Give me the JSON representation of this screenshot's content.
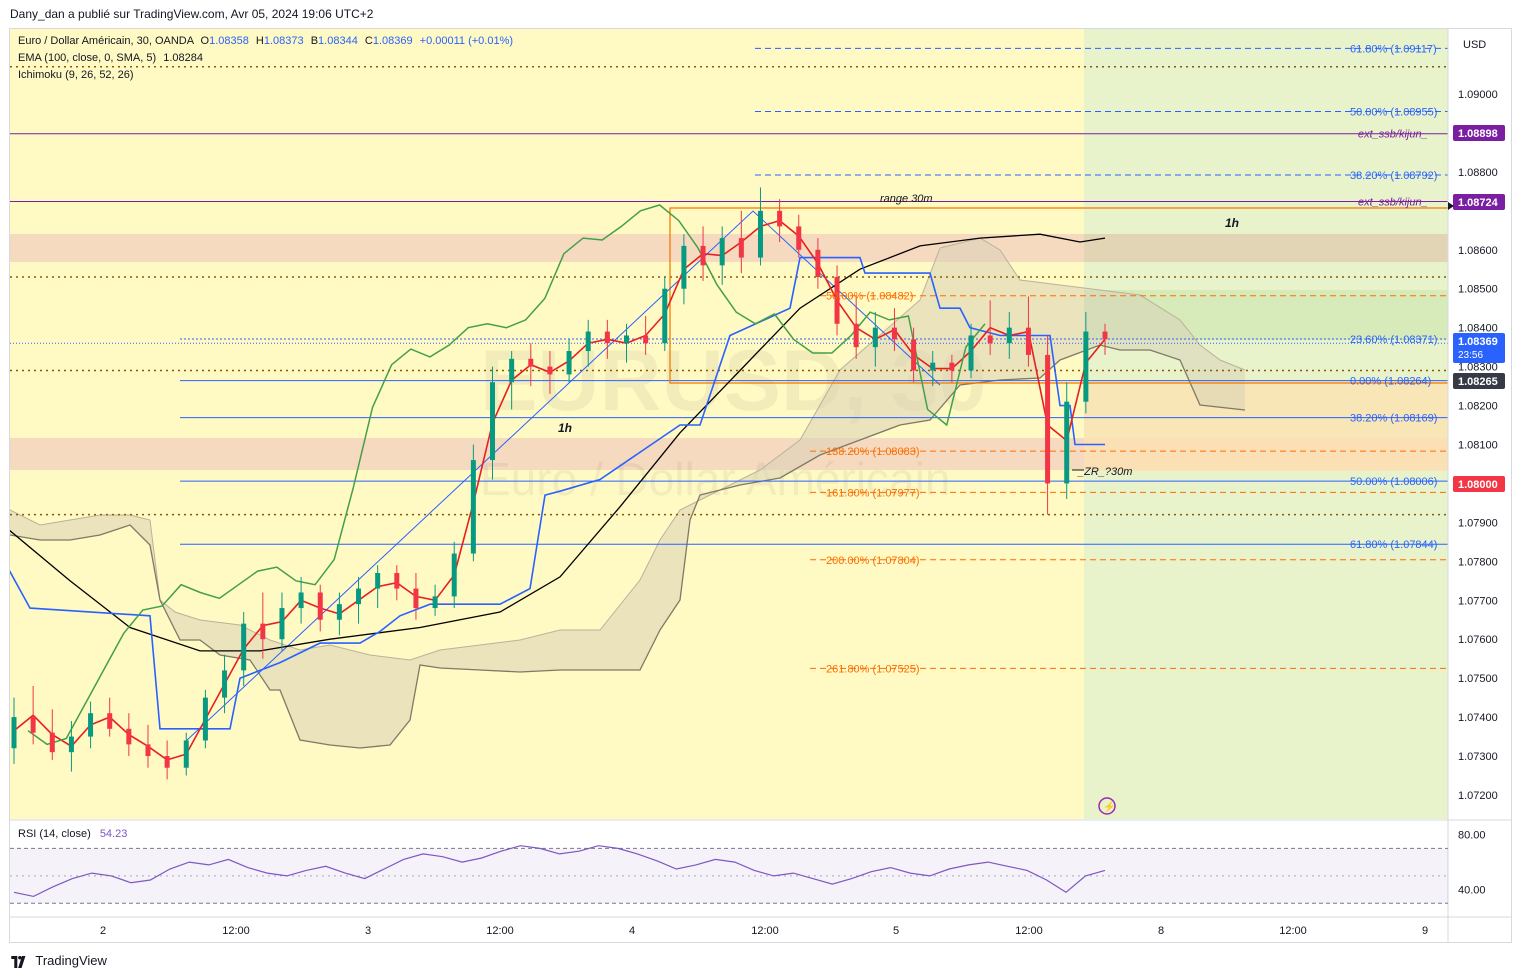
{
  "header": {
    "publish_line": "Dany_dan a publié sur TradingView.com, Avr 05, 2024 19:06 UTC+2"
  },
  "legend": {
    "symbol": "Euro / Dollar Américain, 30, OANDA",
    "o_label": "O",
    "o": "1.08358",
    "h_label": "H",
    "h": "1.08373",
    "b_label": "B",
    "b": "1.08344",
    "c_label": "C",
    "c": "1.08369",
    "change": "+0.00011 (+0.01%)",
    "ema_name": "EMA (100, close, 0, SMA, 5)",
    "ema_value": "1.08284",
    "ichimoku_name": "Ichimoku (9, 26, 52, 26)"
  },
  "watermark": {
    "symbol": "EURUSD, 30",
    "name": "Euro / Dollar Américain"
  },
  "currency": "USD",
  "colors": {
    "background_yellow": "#fff9c4",
    "green_zone": "#e8f3cc",
    "bullish": "#089981",
    "bearish": "#f23645",
    "kijun": "#2962ff",
    "tenkan": "#e91e1e",
    "chikou": "#43a047",
    "cloud": "#d9d2b6",
    "ema": "#000000",
    "fib_blue": "#2962ff",
    "fib_orange": "#ff6d00",
    "purple": "#7b1fa2",
    "rsi": "#7e57c2"
  },
  "chart_data": {
    "type": "candlestick",
    "symbol": "EURUSD",
    "timeframe": "30",
    "ylim": [
      1.0715,
      1.0925
    ],
    "yticks": [
      "1.09000",
      "1.08800",
      "1.08600",
      "1.08500",
      "1.08400",
      "1.08300",
      "1.08200",
      "1.08100",
      "1.07900",
      "1.07800",
      "1.07700",
      "1.07600",
      "1.07500",
      "1.07400",
      "1.07300",
      "1.07200"
    ],
    "xticks": [
      "2",
      "12:00",
      "3",
      "12:00",
      "4",
      "12:00",
      "5",
      "12:00",
      "8",
      "12:00",
      "9"
    ],
    "price_badges": [
      {
        "label": "1.08898",
        "kind": "purple"
      },
      {
        "label": "1.08724",
        "kind": "purple"
      },
      {
        "label": "1.08369",
        "sub": "23:56",
        "kind": "blue"
      },
      {
        "label": "1.08265",
        "kind": "dark"
      },
      {
        "label": "1.08000",
        "kind": "red"
      }
    ],
    "level_labels": [
      {
        "text": "61.80% (1.09117)",
        "color": "blue",
        "price": 1.09117
      },
      {
        "text": "50.00% (1.08955)",
        "color": "blue",
        "price": 1.08955
      },
      {
        "text": "ext_ssb/kijun_",
        "color": "purple",
        "price": 1.08898
      },
      {
        "text": "38.20% (1.08792)",
        "color": "blue",
        "price": 1.08792
      },
      {
        "text": "ext_ssb/kijun_",
        "color": "purple",
        "price": 1.08724
      },
      {
        "text": "50.00% (1.08482)",
        "color": "orange",
        "price": 1.08482
      },
      {
        "text": "23.60% (1.08371)",
        "color": "blue",
        "price": 1.08371
      },
      {
        "text": "0.00% (1.08264)",
        "color": "blue",
        "price": 1.08264
      },
      {
        "text": "38.20% (1.08169)",
        "color": "blue",
        "price": 1.08169
      },
      {
        "text": "138.20% (1.08083)",
        "color": "orange",
        "price": 1.08083
      },
      {
        "text": "50.00% (1.08006)",
        "color": "blue",
        "price": 1.08006
      },
      {
        "text": "161.80% (1.07977)",
        "color": "orange",
        "price": 1.07977
      },
      {
        "text": "61.80% (1.07844)",
        "color": "blue",
        "price": 1.07844
      },
      {
        "text": "200.00% (1.07804)",
        "color": "orange",
        "price": 1.07804
      },
      {
        "text": "261.80% (1.07525)",
        "color": "orange",
        "price": 1.07525
      }
    ],
    "annotations": [
      "range 30m",
      "1h",
      "1h",
      "_ZR_?30m"
    ],
    "candles_ohlc": [
      [
        1.0732,
        1.0745,
        1.0728,
        1.074
      ],
      [
        1.074,
        1.0748,
        1.0733,
        1.0736
      ],
      [
        1.0736,
        1.0742,
        1.0729,
        1.0731
      ],
      [
        1.0731,
        1.0739,
        1.0726,
        1.0735
      ],
      [
        1.0735,
        1.0744,
        1.0732,
        1.0741
      ],
      [
        1.0741,
        1.0745,
        1.0735,
        1.0737
      ],
      [
        1.0737,
        1.0741,
        1.073,
        1.0733
      ],
      [
        1.0733,
        1.0738,
        1.0727,
        1.073
      ],
      [
        1.073,
        1.0734,
        1.0724,
        1.0727
      ],
      [
        1.0727,
        1.0736,
        1.0725,
        1.0734
      ],
      [
        1.0734,
        1.0747,
        1.0732,
        1.0745
      ],
      [
        1.0745,
        1.0756,
        1.0741,
        1.0752
      ],
      [
        1.0752,
        1.0767,
        1.0748,
        1.0764
      ],
      [
        1.0764,
        1.0772,
        1.0755,
        1.076
      ],
      [
        1.076,
        1.0772,
        1.0757,
        1.0768
      ],
      [
        1.0768,
        1.0776,
        1.0764,
        1.0772
      ],
      [
        1.0772,
        1.0774,
        1.0762,
        1.0765
      ],
      [
        1.0765,
        1.0772,
        1.0761,
        1.0769
      ],
      [
        1.0769,
        1.0776,
        1.0764,
        1.0773
      ],
      [
        1.0773,
        1.0779,
        1.0768,
        1.0777
      ],
      [
        1.0777,
        1.0779,
        1.077,
        1.0773
      ],
      [
        1.0773,
        1.0777,
        1.0765,
        1.0768
      ],
      [
        1.0768,
        1.0774,
        1.0766,
        1.0771
      ],
      [
        1.0771,
        1.0785,
        1.0768,
        1.0782
      ],
      [
        1.0782,
        1.081,
        1.078,
        1.0806
      ],
      [
        1.0806,
        1.083,
        1.0801,
        1.0826
      ],
      [
        1.0826,
        1.0834,
        1.0819,
        1.0832
      ],
      [
        1.0832,
        1.0836,
        1.0825,
        1.083
      ],
      [
        1.083,
        1.0834,
        1.0823,
        1.0828
      ],
      [
        1.0828,
        1.0837,
        1.0826,
        1.0834
      ],
      [
        1.0834,
        1.0842,
        1.083,
        1.0839
      ],
      [
        1.0839,
        1.0842,
        1.0832,
        1.0836
      ],
      [
        1.0836,
        1.0841,
        1.0831,
        1.0838
      ],
      [
        1.0838,
        1.0843,
        1.0833,
        1.0836
      ],
      [
        1.0836,
        1.0853,
        1.0834,
        1.085
      ],
      [
        1.085,
        1.0864,
        1.0846,
        1.0861
      ],
      [
        1.0861,
        1.0866,
        1.0852,
        1.0856
      ],
      [
        1.0856,
        1.0866,
        1.0851,
        1.0863
      ],
      [
        1.0863,
        1.087,
        1.0854,
        1.0858
      ],
      [
        1.0858,
        1.0876,
        1.0856,
        1.087
      ],
      [
        1.087,
        1.0873,
        1.0862,
        1.0866
      ],
      [
        1.0866,
        1.0869,
        1.0858,
        1.086
      ],
      [
        1.086,
        1.0863,
        1.085,
        1.0853
      ],
      [
        1.0853,
        1.0856,
        1.0838,
        1.0841
      ],
      [
        1.0841,
        1.0848,
        1.0832,
        1.0835
      ],
      [
        1.0835,
        1.0844,
        1.083,
        1.084
      ],
      [
        1.084,
        1.0845,
        1.0834,
        1.0837
      ],
      [
        1.0837,
        1.084,
        1.0826,
        1.0829
      ],
      [
        1.0829,
        1.0834,
        1.0825,
        1.0831
      ],
      [
        1.0831,
        1.0833,
        1.0826,
        1.0829
      ],
      [
        1.0829,
        1.0841,
        1.0827,
        1.0838
      ],
      [
        1.0838,
        1.0847,
        1.0833,
        1.0836
      ],
      [
        1.0836,
        1.0844,
        1.0832,
        1.084
      ],
      [
        1.084,
        1.0848,
        1.083,
        1.0833
      ],
      [
        1.0833,
        1.0838,
        1.0792,
        1.08
      ],
      [
        1.08,
        1.0826,
        1.0796,
        1.0821
      ],
      [
        1.0821,
        1.0844,
        1.0818,
        1.0839
      ],
      [
        1.0839,
        1.0841,
        1.0833,
        1.0837
      ]
    ],
    "rsi": {
      "name": "RSI (14, close)",
      "value": "54.23",
      "ylim": [
        20,
        90
      ],
      "upper": 70,
      "lower": 30,
      "ticks": [
        "80.00",
        "40.00"
      ],
      "values": [
        38,
        35,
        42,
        48,
        52,
        50,
        45,
        47,
        55,
        60,
        58,
        62,
        56,
        52,
        50,
        54,
        57,
        52,
        48,
        55,
        62,
        66,
        64,
        60,
        63,
        68,
        72,
        70,
        66,
        68,
        72,
        70,
        66,
        61,
        55,
        58,
        62,
        60,
        54,
        50,
        52,
        48,
        44,
        48,
        53,
        56,
        52,
        50,
        55,
        58,
        60,
        57,
        54,
        47,
        38,
        50,
        54
      ]
    },
    "ema100": [
      [
        0,
        1.079
      ],
      [
        70,
        1.0775
      ],
      [
        130,
        1.0763
      ],
      [
        200,
        1.0757
      ],
      [
        260,
        1.0757
      ],
      [
        330,
        1.076
      ],
      [
        420,
        1.0763
      ],
      [
        500,
        1.0767
      ],
      [
        560,
        1.0776
      ],
      [
        620,
        1.0794
      ],
      [
        680,
        1.0813
      ],
      [
        740,
        1.0829
      ],
      [
        800,
        1.0845
      ],
      [
        860,
        1.0855
      ],
      [
        920,
        1.0861
      ],
      [
        980,
        1.0863
      ],
      [
        1040,
        1.0864
      ],
      [
        1080,
        1.0862
      ],
      [
        1105,
        1.0863
      ]
    ],
    "kijun": [
      [
        0,
        1.0782
      ],
      [
        30,
        1.0768
      ],
      [
        150,
        1.0766
      ],
      [
        160,
        1.0737
      ],
      [
        230,
        1.0737
      ],
      [
        240,
        1.075
      ],
      [
        280,
        1.0754
      ],
      [
        320,
        1.0759
      ],
      [
        360,
        1.0759
      ],
      [
        380,
        1.0762
      ],
      [
        400,
        1.0766
      ],
      [
        430,
        1.0769
      ],
      [
        500,
        1.0769
      ],
      [
        530,
        1.0773
      ],
      [
        545,
        1.0797
      ],
      [
        560,
        1.0798
      ],
      [
        600,
        1.0801
      ],
      [
        680,
        1.0815
      ],
      [
        700,
        1.0815
      ],
      [
        730,
        1.0838
      ],
      [
        790,
        1.0845
      ],
      [
        800,
        1.0858
      ],
      [
        860,
        1.0858
      ],
      [
        865,
        1.0854
      ],
      [
        930,
        1.0854
      ],
      [
        940,
        1.0845
      ],
      [
        960,
        1.0845
      ],
      [
        970,
        1.084
      ],
      [
        1000,
        1.0838
      ],
      [
        1050,
        1.0838
      ],
      [
        1060,
        1.082
      ],
      [
        1070,
        1.082
      ],
      [
        1075,
        1.081
      ],
      [
        1105,
        1.081
      ]
    ]
  }
}
